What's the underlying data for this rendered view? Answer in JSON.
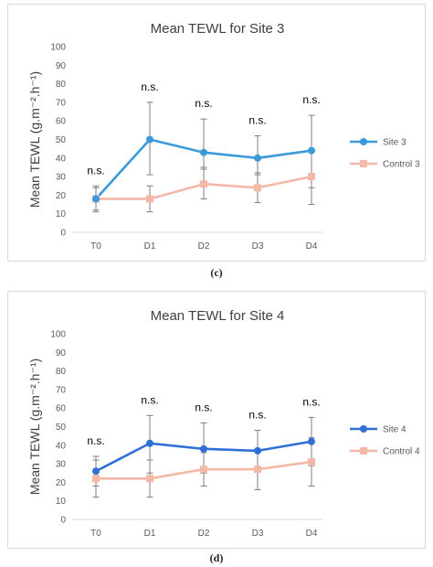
{
  "chart_data": [
    {
      "type": "line",
      "panel": "c",
      "title": "Mean TEWL for Site 3",
      "ylabel": "Mean TEWL (g.m⁻².h⁻¹)",
      "xlabel": "",
      "categories": [
        "T0",
        "D1",
        "D2",
        "D3",
        "D4"
      ],
      "ylim": [
        0,
        100
      ],
      "yticks": [
        0,
        10,
        20,
        30,
        40,
        50,
        60,
        70,
        80,
        90,
        100
      ],
      "grid": false,
      "legend_position": "right",
      "significance_labels": [
        "n.s.",
        "n.s.",
        "n.s.",
        "n.s.",
        "n.s."
      ],
      "series": [
        {
          "name": "Site 3",
          "color": "#3b9ad9",
          "values": [
            18,
            50,
            43,
            40,
            44
          ],
          "error_low": [
            12,
            31,
            34,
            31,
            24
          ],
          "error_high": [
            24,
            70,
            61,
            52,
            63
          ]
        },
        {
          "name": "Control 3",
          "color": "#f4b8a6",
          "values": [
            18,
            18,
            26,
            24,
            30
          ],
          "error_low": [
            11,
            11,
            18,
            16,
            15
          ],
          "error_high": [
            25,
            25,
            35,
            32,
            45
          ]
        }
      ]
    },
    {
      "type": "line",
      "panel": "d",
      "title": "Mean TEWL for Site 4",
      "ylabel": "Mean TEWL (g.m⁻².h⁻¹)",
      "xlabel": "",
      "categories": [
        "T0",
        "D1",
        "D2",
        "D3",
        "D4"
      ],
      "ylim": [
        0,
        100
      ],
      "yticks": [
        0,
        10,
        20,
        30,
        40,
        50,
        60,
        70,
        80,
        90,
        100
      ],
      "grid": false,
      "legend_position": "right",
      "significance_labels": [
        "n.s.",
        "n.s.",
        "n.s.",
        "n.s.",
        "n.s."
      ],
      "series": [
        {
          "name": "Site 4",
          "color": "#2f6fd6",
          "values": [
            26,
            41,
            38,
            37,
            42
          ],
          "error_low": [
            18,
            25,
            25,
            26,
            29
          ],
          "error_high": [
            34,
            56,
            52,
            48,
            55
          ]
        },
        {
          "name": "Control 4",
          "color": "#f4b8a6",
          "values": [
            22,
            22,
            27,
            27,
            31
          ],
          "error_low": [
            12,
            12,
            18,
            16,
            18
          ],
          "error_high": [
            32,
            32,
            36,
            38,
            44
          ]
        }
      ]
    }
  ],
  "captions": [
    "(c)",
    "(d)"
  ]
}
